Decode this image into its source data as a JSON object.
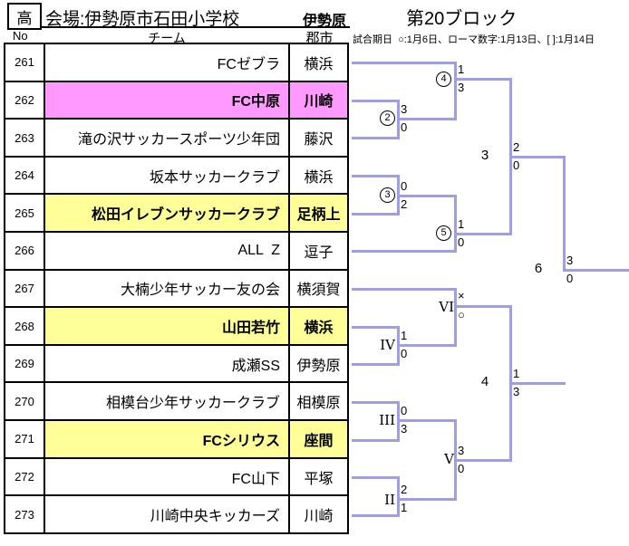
{
  "header": {
    "grade_badge": "高",
    "venue_label": "会場:伊勢原市石田小学校",
    "region": "伊勢原",
    "block_title": "第20ブロック",
    "schedule_legend": "試合期日  ○:1月6日、ローマ数字:1月13日、[ ]:1月14日"
  },
  "table": {
    "columns": {
      "no": "No",
      "team": "チーム",
      "city": "郡市"
    },
    "rows": [
      {
        "no": "261",
        "team": "FCゼブラ",
        "city": "横浜",
        "highlight": "none"
      },
      {
        "no": "262",
        "team": "FC中原",
        "city": "川崎",
        "highlight": "pink"
      },
      {
        "no": "263",
        "team": "滝の沢サッカースポーツ少年団",
        "city": "藤沢",
        "highlight": "none"
      },
      {
        "no": "264",
        "team": "坂本サッカークラブ",
        "city": "横浜",
        "highlight": "none"
      },
      {
        "no": "265",
        "team": "松田イレブンサッカークラブ",
        "city": "足柄上",
        "highlight": "yellow"
      },
      {
        "no": "266",
        "team": "ALL  Z",
        "city": "逗子",
        "highlight": "none"
      },
      {
        "no": "267",
        "team": "大楠少年サッカー友の会",
        "city": "横須賀",
        "highlight": "none"
      },
      {
        "no": "268",
        "team": "山田若竹",
        "city": "横浜",
        "highlight": "yellow"
      },
      {
        "no": "269",
        "team": "成瀬SS",
        "city": "伊勢原",
        "highlight": "none"
      },
      {
        "no": "270",
        "team": "相模台少年サッカークラブ",
        "city": "相模原",
        "highlight": "none"
      },
      {
        "no": "271",
        "team": "FCシリウス",
        "city": "座間",
        "highlight": "yellow"
      },
      {
        "no": "272",
        "team": "FC山下",
        "city": "平塚",
        "highlight": "none"
      },
      {
        "no": "273",
        "team": "川崎中央キッカーズ",
        "city": "川崎",
        "highlight": "none"
      }
    ]
  },
  "bracket": {
    "matches": [
      {
        "id": "m2",
        "marker_type": "circled",
        "marker": "2",
        "top_score": "3",
        "bottom_score": "0"
      },
      {
        "id": "m3",
        "marker_type": "circled",
        "marker": "3",
        "top_score": "0",
        "bottom_score": "2"
      },
      {
        "id": "m4",
        "marker_type": "circled",
        "marker": "4",
        "top_score": "1",
        "bottom_score": "3"
      },
      {
        "id": "m5",
        "marker_type": "circled",
        "marker": "5",
        "top_score": "1",
        "bottom_score": "0"
      },
      {
        "id": "mII",
        "marker_type": "roman",
        "marker": "II",
        "top_score": "2",
        "bottom_score": "1"
      },
      {
        "id": "mIII",
        "marker_type": "roman",
        "marker": "III",
        "top_score": "0",
        "bottom_score": "3"
      },
      {
        "id": "mIV",
        "marker_type": "roman",
        "marker": "IV",
        "top_score": "1",
        "bottom_score": "0"
      },
      {
        "id": "mV",
        "marker_type": "roman",
        "marker": "V",
        "top_score": "3",
        "bottom_score": "0"
      },
      {
        "id": "mVI",
        "marker_type": "roman",
        "marker": "VI",
        "top_score": "×",
        "bottom_score": "○"
      },
      {
        "id": "mS3",
        "marker_type": "bracketed",
        "marker": "3",
        "top_score": "2",
        "bottom_score": "0"
      },
      {
        "id": "mS4",
        "marker_type": "bracketed",
        "marker": "4",
        "top_score": "1",
        "bottom_score": "3"
      },
      {
        "id": "mS6",
        "marker_type": "bracketed",
        "marker": "6",
        "top_score": "3",
        "bottom_score": "0"
      }
    ]
  },
  "colors": {
    "pink": "#FF99FF",
    "yellow": "#FFFF99",
    "bracket_line": "#9D9DE8",
    "border": "#000000"
  }
}
